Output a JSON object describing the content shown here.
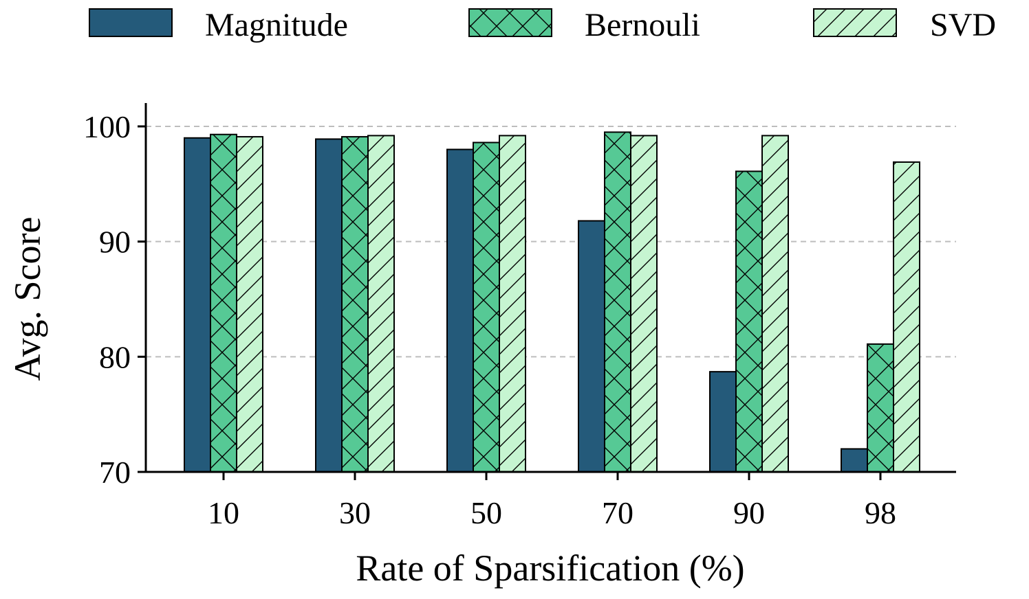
{
  "chart_data": {
    "type": "bar",
    "categories": [
      "10",
      "30",
      "50",
      "70",
      "90",
      "98"
    ],
    "series": [
      {
        "name": "Magnitude",
        "values": [
          99.0,
          98.9,
          98.0,
          91.8,
          78.7,
          72.0
        ],
        "color": "#245a7a",
        "pattern": "none"
      },
      {
        "name": "Bernouli",
        "values": [
          99.3,
          99.1,
          98.6,
          99.5,
          96.1,
          81.1
        ],
        "color": "#56c995",
        "pattern": "crosshatch"
      },
      {
        "name": "SVD",
        "values": [
          99.1,
          99.2,
          99.2,
          99.2,
          99.2,
          96.9
        ],
        "color": "#c6f5d1",
        "pattern": "diagonal"
      }
    ],
    "xlabel": "Rate of Sparsification (%)",
    "ylabel": "Avg. Score",
    "ylim": [
      70,
      100
    ],
    "yticks": [
      70,
      80,
      90,
      100
    ],
    "grid": "horizontal dashed",
    "legend": "top"
  }
}
